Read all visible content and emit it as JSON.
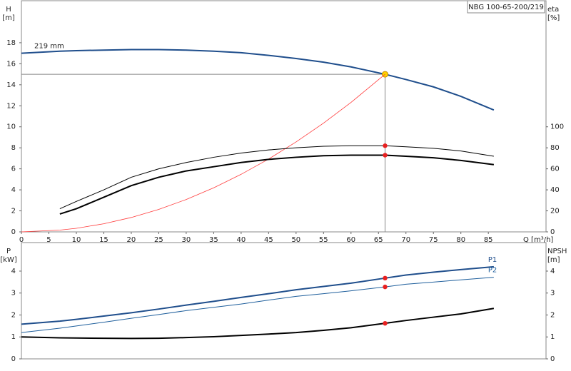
{
  "chart_data": [
    {
      "type": "line",
      "title": "NBG 100-65-200/219",
      "y_label": "H",
      "y_unit": "[m]",
      "y2_label": "eta",
      "y2_unit": "[%]",
      "x_label": "Q [m³/h]",
      "x": [
        0,
        7,
        10,
        15,
        20,
        25,
        30,
        35,
        40,
        45,
        50,
        55,
        60,
        66.2,
        70,
        75,
        80,
        86
      ],
      "xlim": [
        0,
        95.5
      ],
      "xticks": [
        0,
        5,
        10,
        15,
        20,
        25,
        30,
        35,
        40,
        45,
        50,
        55,
        60,
        65,
        70,
        75,
        80,
        85
      ],
      "ylim": [
        0,
        22
      ],
      "yticks": [
        0,
        2,
        4,
        6,
        8,
        10,
        12,
        14,
        16,
        18
      ],
      "y2lim": [
        0,
        220
      ],
      "y2ticks": [
        0,
        20,
        40,
        60,
        80,
        100
      ],
      "highlight_index": 13,
      "highlight_color": "#e82020",
      "duty_color": "#ffd200",
      "guide_color": "#888888",
      "grid": false,
      "series": [
        {
          "name": "219 mm",
          "color": "#1f4e8c",
          "width": 2,
          "label_pos": "start",
          "duty": true,
          "values": [
            17.0,
            17.2,
            17.25,
            17.3,
            17.35,
            17.35,
            17.3,
            17.2,
            17.05,
            16.8,
            16.5,
            16.15,
            15.7,
            15.0,
            14.5,
            13.8,
            12.9,
            11.6
          ]
        },
        {
          "color": "#ff3b3b",
          "width": 0.8,
          "values": [
            0,
            0.17,
            0.34,
            0.77,
            1.37,
            2.14,
            3.08,
            4.19,
            5.48,
            6.93,
            8.56,
            10.35,
            12.32,
            15.0,
            null,
            null,
            null,
            null
          ]
        },
        {
          "color": "#000000",
          "width": 1,
          "axis": "y2",
          "highlight": true,
          "values": [
            null,
            22,
            29,
            40,
            52,
            60,
            66,
            71,
            75,
            78,
            80,
            81.5,
            82,
            82,
            81,
            79.5,
            77,
            72
          ]
        },
        {
          "color": "#000000",
          "width": 2,
          "axis": "y2",
          "highlight": true,
          "values": [
            null,
            17,
            22,
            33,
            44,
            52,
            58,
            62,
            66,
            69,
            71,
            72.5,
            73,
            73,
            72,
            70.5,
            68,
            64
          ]
        }
      ]
    },
    {
      "type": "line",
      "y_label": "P",
      "y_unit": "[kW]",
      "y2_label": "NPSH",
      "y2_unit": "[m]",
      "x": [
        0,
        7,
        10,
        15,
        20,
        25,
        30,
        35,
        40,
        45,
        50,
        55,
        60,
        66.2,
        70,
        75,
        80,
        86
      ],
      "xlim": [
        0,
        95.5
      ],
      "ylim": [
        0,
        5.3
      ],
      "yticks": [
        0,
        1,
        2,
        3,
        4
      ],
      "y2lim": [
        0,
        5.3
      ],
      "y2ticks": [
        0,
        1,
        2,
        3,
        4
      ],
      "highlight_index": 13,
      "highlight_color": "#e82020",
      "grid": false,
      "series": [
        {
          "name": "P1",
          "color": "#1f4e8c",
          "width": 2,
          "label_pos": "end",
          "highlight": true,
          "values": [
            1.58,
            1.72,
            1.8,
            1.95,
            2.1,
            2.27,
            2.45,
            2.62,
            2.8,
            2.97,
            3.15,
            3.3,
            3.45,
            3.68,
            3.82,
            3.95,
            4.07,
            4.2
          ]
        },
        {
          "name": "P2",
          "color": "#1f5f9c",
          "width": 1,
          "label_pos": "end",
          "highlight": true,
          "values": [
            1.2,
            1.4,
            1.5,
            1.67,
            1.85,
            2.02,
            2.2,
            2.35,
            2.5,
            2.68,
            2.85,
            2.97,
            3.1,
            3.28,
            3.4,
            3.5,
            3.6,
            3.72
          ]
        },
        {
          "color": "#000000",
          "width": 2,
          "axis": "y2",
          "highlight": true,
          "values": [
            1.0,
            0.96,
            0.95,
            0.94,
            0.93,
            0.94,
            0.97,
            1.01,
            1.07,
            1.13,
            1.2,
            1.3,
            1.42,
            1.62,
            1.75,
            1.9,
            2.05,
            2.3
          ]
        }
      ]
    }
  ]
}
